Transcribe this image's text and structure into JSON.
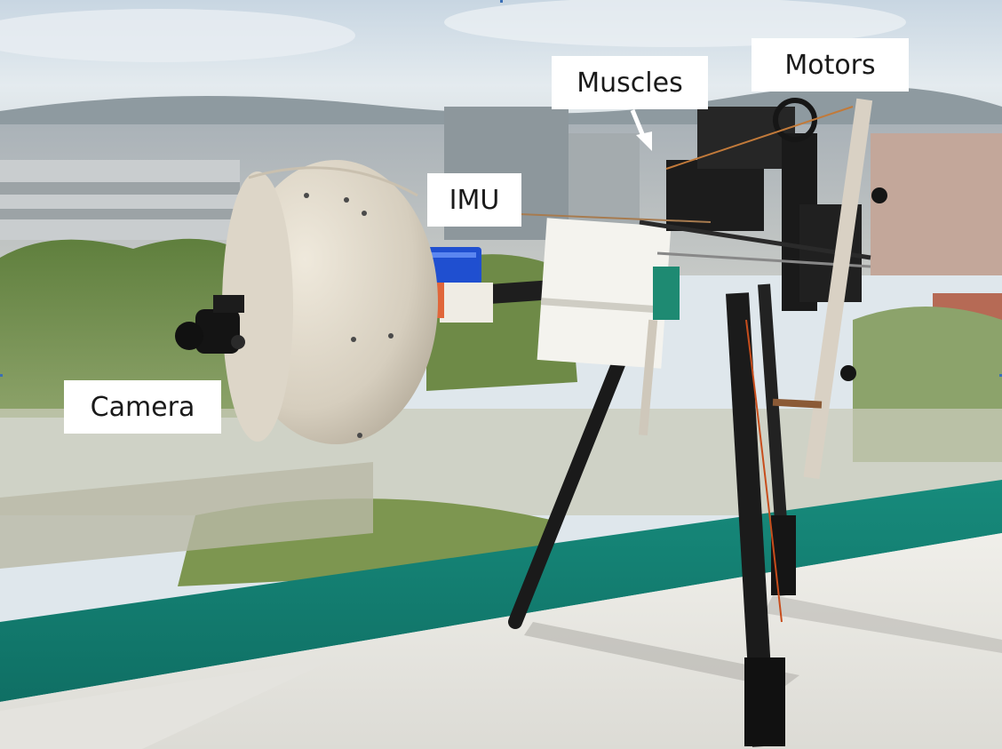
{
  "labels": {
    "muscles": "Muscles",
    "motors": "Motors",
    "imu": "IMU",
    "camera": "Camera"
  },
  "colors": {
    "sky": "#d9e4ec",
    "city": "#b9bfc3",
    "foliage": "#6f8c4e",
    "windowsill_teal": "#1f8a7a",
    "ledge": "#e9e8e3",
    "head_sphere": "#dcd5c7",
    "tripod": "#1b1b1b",
    "servo_blue": "#1f4fd0",
    "label_bg": "#ffffff",
    "label_text": "#1a1a1a"
  }
}
